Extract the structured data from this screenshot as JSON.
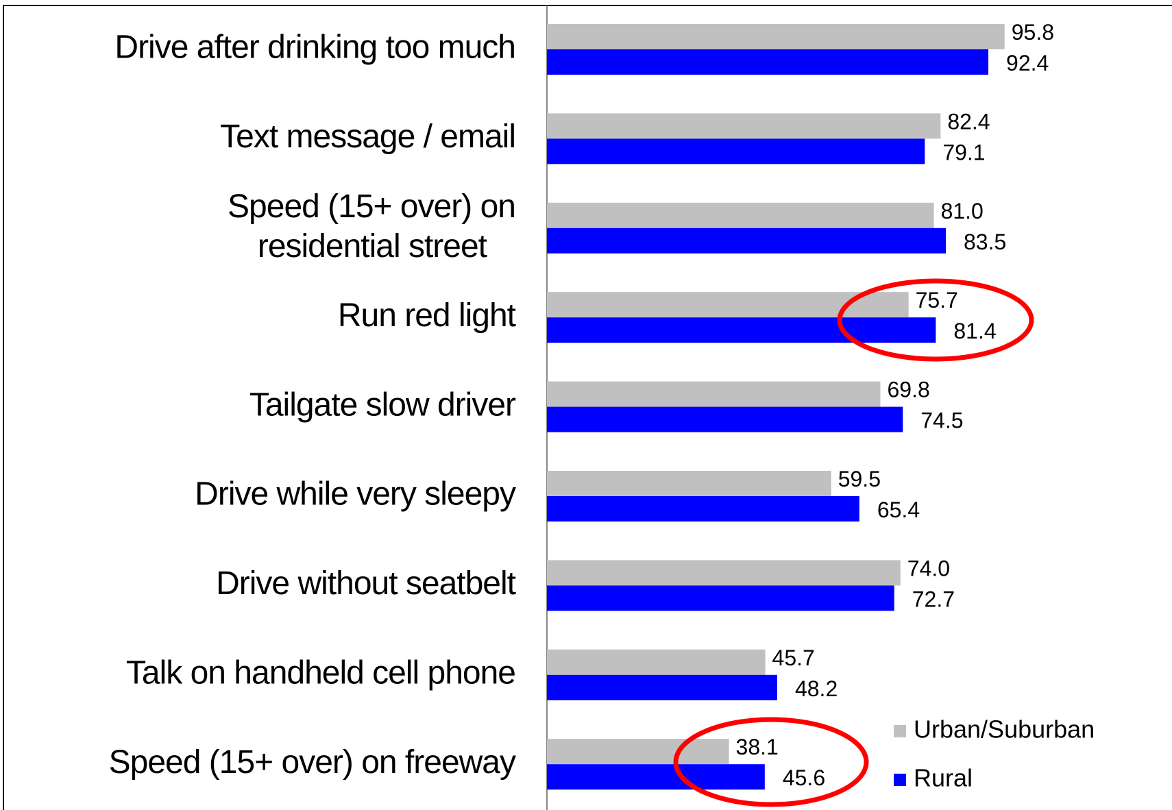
{
  "chart_data": {
    "type": "hbar",
    "categories": [
      "Drive after drinking too much",
      "Text message / email",
      "Speed (15+ over) on\nresidential street",
      "Run red light",
      "Tailgate slow driver",
      "Drive while very sleepy",
      "Drive without seatbelt",
      "Talk on handheld cell phone",
      "Speed (15+ over) on freeway"
    ],
    "series": [
      {
        "name": "Urban/Suburban",
        "color": "#c0c0c0",
        "values": [
          95.8,
          82.4,
          81,
          75.7,
          69.8,
          59.5,
          74,
          45.7,
          38.1
        ],
        "value_labels": [
          "95.8",
          "82.4",
          "81.0",
          "75.7",
          "69.8",
          "59.5",
          "74.0",
          "45.7",
          "38.1"
        ]
      },
      {
        "name": "Rural",
        "color": "#0000ff",
        "values": [
          92.4,
          79.1,
          83.5,
          81.4,
          74.5,
          65.4,
          72.7,
          48.2,
          45.6
        ],
        "value_labels": [
          "92.4",
          "79.1",
          "83.5",
          "81.4",
          "74.5",
          "65.4",
          "72.7",
          "48.2",
          "45.6"
        ]
      }
    ],
    "legend": "bottom-right"
  }
}
